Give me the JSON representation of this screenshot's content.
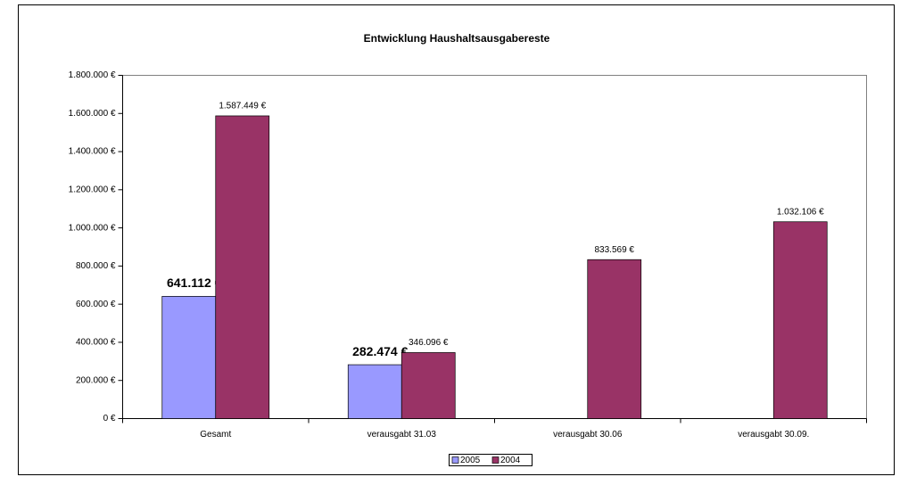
{
  "chart_data": {
    "type": "bar",
    "title": "Entwicklung Haushaltsausgabereste",
    "categories": [
      "Gesamt",
      "verausgabt 31.03",
      "verausgabt 30.06",
      "verausgabt 30.09."
    ],
    "series": [
      {
        "name": "2005",
        "color": "#9999ff",
        "values": [
          641112,
          282474,
          null,
          null
        ],
        "value_labels": [
          "641.112 €",
          "282.474 €",
          null,
          null
        ]
      },
      {
        "name": "2004",
        "color": "#993366",
        "values": [
          1587449,
          346096,
          833569,
          1032106
        ],
        "value_labels": [
          "1.587.449 €",
          "346.096 €",
          "833.569 €",
          "1.032.106 €"
        ]
      }
    ],
    "ylim": [
      0,
      1800000
    ],
    "yticks": [
      {
        "value": 0,
        "label": "0 €"
      },
      {
        "value": 200000,
        "label": "200.000 €"
      },
      {
        "value": 400000,
        "label": "400.000 €"
      },
      {
        "value": 600000,
        "label": "600.000 €"
      },
      {
        "value": 800000,
        "label": "800.000 €"
      },
      {
        "value": 1000000,
        "label": "1.000.000 €"
      },
      {
        "value": 1200000,
        "label": "1.200.000 €"
      },
      {
        "value": 1400000,
        "label": "1.400.000 €"
      },
      {
        "value": 1600000,
        "label": "1.600.000 €"
      },
      {
        "value": 1800000,
        "label": "1.800.000 €"
      }
    ],
    "grid": false,
    "legend": "bottom"
  }
}
